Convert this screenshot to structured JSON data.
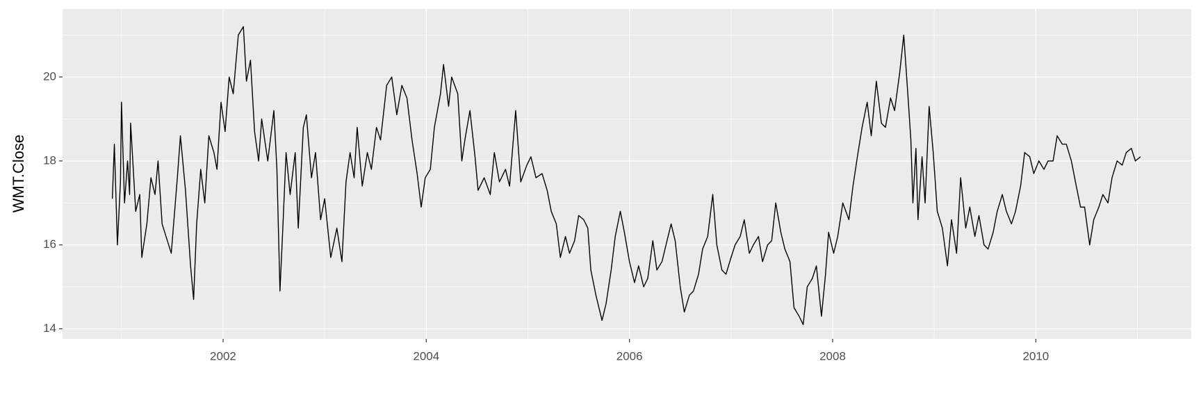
{
  "chart_data": {
    "type": "line",
    "ylabel": "WMT.Close",
    "color": "#000000",
    "grid": true,
    "xlim": [
      2000.42,
      2011.53
    ],
    "ylim": [
      13.76,
      21.62
    ],
    "xticks": [
      2002,
      2004,
      2006,
      2008,
      2010
    ],
    "yticks": [
      14,
      16,
      18,
      20
    ],
    "x_minor_ticks": [
      2001,
      2003,
      2005,
      2007,
      2009,
      2011
    ],
    "y_minor_ticks": [
      15,
      17,
      19,
      21
    ],
    "x": [
      2000.91,
      2000.93,
      2000.96,
      2000.99,
      2001.0,
      2001.03,
      2001.06,
      2001.08,
      2001.09,
      2001.14,
      2001.18,
      2001.2,
      2001.25,
      2001.29,
      2001.33,
      2001.36,
      2001.4,
      2001.49,
      2001.55,
      2001.58,
      2001.63,
      2001.68,
      2001.71,
      2001.74,
      2001.78,
      2001.82,
      2001.86,
      2001.91,
      2001.94,
      2001.98,
      2002.02,
      2002.06,
      2002.1,
      2002.15,
      2002.2,
      2002.23,
      2002.27,
      2002.31,
      2002.35,
      2002.38,
      2002.44,
      2002.5,
      2002.53,
      2002.56,
      2002.59,
      2002.62,
      2002.66,
      2002.71,
      2002.74,
      2002.79,
      2002.82,
      2002.87,
      2002.91,
      2002.96,
      2003.0,
      2003.06,
      2003.12,
      2003.17,
      2003.21,
      2003.25,
      2003.29,
      2003.32,
      2003.37,
      2003.42,
      2003.46,
      2003.51,
      2003.55,
      2003.61,
      2003.66,
      2003.71,
      2003.76,
      2003.81,
      2003.86,
      2003.91,
      2003.95,
      2003.99,
      2004.04,
      2004.08,
      2004.14,
      2004.17,
      2004.22,
      2004.25,
      2004.31,
      2004.35,
      2004.38,
      2004.43,
      2004.48,
      2004.51,
      2004.57,
      2004.63,
      2004.67,
      2004.72,
      2004.78,
      2004.82,
      2004.88,
      2004.93,
      2004.99,
      2005.03,
      2005.08,
      2005.14,
      2005.19,
      2005.23,
      2005.28,
      2005.32,
      2005.37,
      2005.41,
      2005.46,
      2005.5,
      2005.55,
      2005.59,
      2005.62,
      2005.67,
      2005.73,
      2005.77,
      2005.82,
      2005.86,
      2005.91,
      2005.95,
      2006.0,
      2006.05,
      2006.09,
      2006.14,
      2006.18,
      2006.23,
      2006.27,
      2006.32,
      2006.36,
      2006.41,
      2006.45,
      2006.5,
      2006.54,
      2006.59,
      2006.63,
      2006.68,
      2006.72,
      2006.77,
      2006.82,
      2006.86,
      2006.91,
      2006.95,
      2007.0,
      2007.04,
      2007.09,
      2007.13,
      2007.18,
      2007.22,
      2007.27,
      2007.31,
      2007.36,
      2007.4,
      2007.44,
      2007.49,
      2007.53,
      2007.58,
      2007.62,
      2007.67,
      2007.71,
      2007.75,
      2007.8,
      2007.84,
      2007.89,
      2007.93,
      2007.96,
      2008.01,
      2008.05,
      2008.1,
      2008.16,
      2008.2,
      2008.25,
      2008.29,
      2008.34,
      2008.38,
      2008.43,
      2008.48,
      2008.52,
      2008.57,
      2008.61,
      2008.66,
      2008.7,
      2008.74,
      2008.77,
      2008.79,
      2008.82,
      2008.84,
      2008.88,
      2008.91,
      2008.95,
      2008.99,
      2009.03,
      2009.08,
      2009.13,
      2009.17,
      2009.22,
      2009.26,
      2009.31,
      2009.35,
      2009.4,
      2009.44,
      2009.49,
      2009.53,
      2009.58,
      2009.62,
      2009.67,
      2009.71,
      2009.76,
      2009.8,
      2009.85,
      2009.89,
      2009.94,
      2009.98,
      2010.03,
      2010.08,
      2010.12,
      2010.17,
      2010.21,
      2010.26,
      2010.3,
      2010.35,
      2010.39,
      2010.44,
      2010.48,
      2010.53,
      2010.57,
      2010.62,
      2010.66,
      2010.71,
      2010.75,
      2010.8,
      2010.85,
      2010.89,
      2010.94,
      2010.98,
      2011.03
    ],
    "values": [
      17.1,
      18.4,
      16.0,
      17.5,
      19.4,
      17.0,
      18.0,
      17.2,
      18.9,
      16.8,
      17.2,
      15.7,
      16.5,
      17.6,
      17.2,
      18.0,
      16.5,
      15.8,
      17.6,
      18.6,
      17.3,
      15.5,
      14.7,
      16.5,
      17.8,
      17.0,
      18.6,
      18.2,
      17.8,
      19.4,
      18.7,
      20.0,
      19.6,
      21.0,
      21.2,
      19.9,
      20.4,
      18.7,
      18.0,
      19.0,
      18.0,
      19.2,
      17.8,
      14.9,
      16.5,
      18.2,
      17.2,
      18.2,
      16.4,
      18.8,
      19.1,
      17.6,
      18.2,
      16.6,
      17.1,
      15.7,
      16.4,
      15.6,
      17.5,
      18.2,
      17.6,
      18.8,
      17.4,
      18.2,
      17.8,
      18.8,
      18.5,
      19.8,
      20.0,
      19.1,
      19.8,
      19.5,
      18.5,
      17.7,
      16.9,
      17.6,
      17.8,
      18.8,
      19.6,
      20.3,
      19.3,
      20.0,
      19.6,
      18.0,
      18.5,
      19.2,
      18.1,
      17.3,
      17.6,
      17.2,
      18.2,
      17.5,
      17.8,
      17.4,
      19.2,
      17.5,
      17.9,
      18.1,
      17.6,
      17.7,
      17.3,
      16.8,
      16.5,
      15.7,
      16.2,
      15.8,
      16.1,
      16.7,
      16.6,
      16.4,
      15.4,
      14.8,
      14.2,
      14.6,
      15.4,
      16.2,
      16.8,
      16.3,
      15.6,
      15.1,
      15.5,
      15.0,
      15.2,
      16.1,
      15.4,
      15.6,
      16.0,
      16.5,
      16.1,
      15.0,
      14.4,
      14.8,
      14.9,
      15.3,
      15.9,
      16.2,
      17.2,
      16.0,
      15.4,
      15.3,
      15.7,
      16.0,
      16.2,
      16.6,
      15.8,
      16.0,
      16.2,
      15.6,
      16.0,
      16.1,
      17.0,
      16.3,
      15.9,
      15.6,
      14.5,
      14.3,
      14.1,
      15.0,
      15.2,
      15.5,
      14.3,
      15.3,
      16.3,
      15.8,
      16.2,
      17.0,
      16.6,
      17.4,
      18.2,
      18.8,
      19.4,
      18.6,
      19.9,
      18.9,
      18.8,
      19.5,
      19.2,
      20.1,
      21.0,
      19.6,
      18.5,
      17.0,
      18.3,
      16.6,
      18.1,
      17.0,
      19.3,
      18.2,
      16.8,
      16.4,
      15.5,
      16.6,
      15.8,
      17.6,
      16.4,
      16.9,
      16.2,
      16.7,
      16.0,
      15.9,
      16.3,
      16.8,
      17.2,
      16.8,
      16.5,
      16.8,
      17.4,
      18.2,
      18.1,
      17.7,
      18.0,
      17.8,
      18.0,
      18.0,
      18.6,
      18.4,
      18.4,
      18.0,
      17.5,
      16.9,
      16.9,
      16.0,
      16.6,
      16.9,
      17.2,
      17.0,
      17.6,
      18.0,
      17.9,
      18.2,
      18.3,
      18.0,
      18.1
    ]
  }
}
